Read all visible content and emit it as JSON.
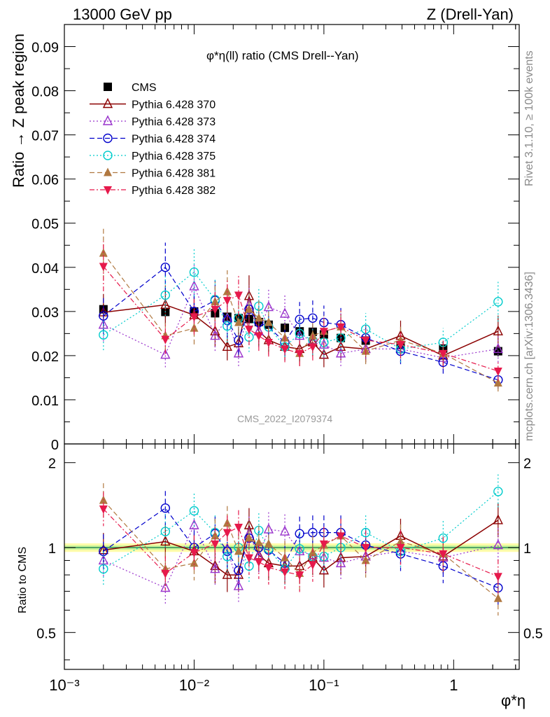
{
  "header": {
    "energy_label": "13000 GeV pp",
    "process_label": "Z (Drell-Yan)"
  },
  "side_labels": {
    "rivet": "Rivet 3.1.10, ≥ 100k events",
    "mcplots": "mcplots.cern.ch [arXiv:1306.3436]"
  },
  "chart_data": {
    "type": "scatter",
    "title": "φ*η(ll) ratio (CMS Drell--Yan)",
    "watermark": "CMS_2022_I2079374",
    "xlabel": "φ*η",
    "ylabel": "Ratio → Z peak region",
    "ratio_ylabel": "Ratio to CMS",
    "x_scale": "log",
    "xlim": [
      0.001,
      3.2
    ],
    "ylim": [
      0,
      0.095
    ],
    "ratio_ylim": [
      0.37,
      2.33
    ],
    "x_tick_labels": [
      "10⁻³",
      "10⁻²",
      "10⁻¹",
      "1"
    ],
    "y_tick_labels": [
      "0",
      "0.01",
      "0.02",
      "0.03",
      "0.04",
      "0.05",
      "0.06",
      "0.07",
      "0.08",
      "0.09"
    ],
    "ratio_tick_labels": [
      "0.5",
      "1",
      "2"
    ],
    "legend_position": "top-left",
    "x": [
      0.002,
      0.006,
      0.01,
      0.0145,
      0.018,
      0.022,
      0.0265,
      0.0315,
      0.0375,
      0.05,
      0.065,
      0.082,
      0.1,
      0.135,
      0.21,
      0.39,
      0.83,
      2.2
    ],
    "series": [
      {
        "name": "CMS",
        "color": "#000000",
        "marker": "square",
        "values": [
          0.0305,
          0.0299,
          0.03,
          0.0296,
          0.0288,
          0.0285,
          0.0283,
          0.0276,
          0.027,
          0.0263,
          0.0255,
          0.0254,
          0.0248,
          0.024,
          0.0234,
          0.0224,
          0.0216,
          0.021
        ]
      },
      {
        "name": "Pythia 6.428 370",
        "color": "#8b0000",
        "marker": "open-triangle-up",
        "values": [
          0.0298,
          0.0315,
          0.0292,
          0.0255,
          0.022,
          0.0228,
          0.0335,
          0.0255,
          0.0235,
          0.022,
          0.0215,
          0.023,
          0.0202,
          0.022,
          0.0215,
          0.0245,
          0.02,
          0.0255
        ]
      },
      {
        "name": "Pythia 6.428 373",
        "color": "#9933cc",
        "marker": "open-triangle-up",
        "values": [
          0.027,
          0.0202,
          0.0357,
          0.0245,
          0.0285,
          0.0205,
          0.0315,
          0.0255,
          0.031,
          0.0295,
          0.0245,
          0.0235,
          0.0225,
          0.0205,
          0.0215,
          0.0215,
          0.0195,
          0.0215
        ]
      },
      {
        "name": "Pythia 6.428 374",
        "color": "#0000cc",
        "marker": "open-circle",
        "values": [
          0.029,
          0.04,
          0.03,
          0.0325,
          0.028,
          0.0235,
          0.0305,
          0.0275,
          0.0265,
          0.023,
          0.0282,
          0.0285,
          0.0275,
          0.027,
          0.024,
          0.021,
          0.0185,
          0.0145
        ]
      },
      {
        "name": "Pythia 6.428 375",
        "color": "#00cccc",
        "marker": "open-circle",
        "values": [
          0.0247,
          0.0337,
          0.0389,
          0.0327,
          0.0267,
          0.0285,
          0.0242,
          0.0312,
          0.0265,
          0.022,
          0.025,
          0.0235,
          0.023,
          0.024,
          0.026,
          0.0215,
          0.023,
          0.0322
        ]
      },
      {
        "name": "Pythia 6.428 381",
        "color": "#b07840",
        "marker": "filled-triangle-up",
        "values": [
          0.0432,
          0.0245,
          0.0262,
          0.0322,
          0.0345,
          0.0275,
          0.0305,
          0.0285,
          0.0275,
          0.024,
          0.0205,
          0.0245,
          0.0255,
          0.0265,
          0.021,
          0.0235,
          0.0205,
          0.0138
        ]
      },
      {
        "name": "Pythia 6.428 382",
        "color": "#e6194b",
        "marker": "filled-triangle-down",
        "values": [
          0.0402,
          0.0237,
          0.0288,
          0.0305,
          0.0325,
          0.0337,
          0.026,
          0.0245,
          0.023,
          0.0215,
          0.0205,
          0.022,
          0.0255,
          0.0265,
          0.0235,
          0.0225,
          0.0205,
          0.0165
        ]
      }
    ],
    "ratio_series": [
      {
        "name": "Pythia 6.428 370",
        "values": [
          0.98,
          1.05,
          0.97,
          0.86,
          0.8,
          0.8,
          1.2,
          0.94,
          0.88,
          0.86,
          0.86,
          0.92,
          0.83,
          0.92,
          0.93,
          1.1,
          0.93,
          1.25
        ]
      },
      {
        "name": "Pythia 6.428 373",
        "values": [
          0.9,
          0.72,
          1.2,
          0.84,
          0.99,
          0.73,
          1.12,
          0.93,
          1.16,
          1.14,
          0.97,
          0.94,
          0.92,
          0.88,
          0.93,
          0.97,
          0.92,
          1.02
        ]
      },
      {
        "name": "Pythia 6.428 374",
        "values": [
          0.97,
          1.38,
          1.0,
          1.12,
          0.97,
          0.83,
          1.08,
          1.0,
          0.98,
          0.88,
          1.12,
          1.13,
          1.13,
          1.13,
          1.02,
          0.95,
          0.86,
          0.72
        ]
      },
      {
        "name": "Pythia 6.428 375",
        "values": [
          0.84,
          1.14,
          1.35,
          1.13,
          0.93,
          1.0,
          0.86,
          1.15,
          0.99,
          0.84,
          0.99,
          0.93,
          0.93,
          1.0,
          1.13,
          0.97,
          1.08,
          1.58
        ]
      },
      {
        "name": "Pythia 6.428 381",
        "values": [
          1.47,
          0.84,
          0.88,
          1.1,
          1.22,
          0.97,
          1.08,
          1.04,
          1.03,
          0.92,
          0.81,
          0.96,
          1.02,
          1.1,
          0.9,
          1.05,
          0.95,
          0.66
        ]
      },
      {
        "name": "Pythia 6.428 382",
        "values": [
          1.37,
          0.81,
          0.96,
          1.03,
          1.13,
          1.18,
          0.92,
          0.89,
          0.85,
          0.82,
          0.8,
          0.87,
          1.03,
          1.1,
          1.0,
          1.0,
          0.95,
          0.79
        ]
      }
    ]
  }
}
